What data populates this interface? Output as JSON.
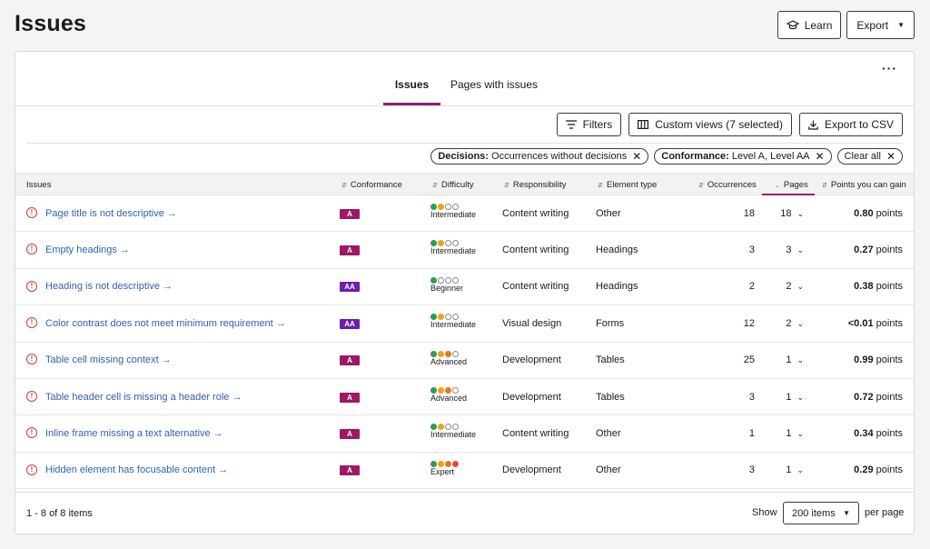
{
  "page_title": "Issues",
  "top_actions": {
    "learn_label": "Learn",
    "export_label": "Export"
  },
  "tabs": [
    {
      "label": "Issues",
      "active": true
    },
    {
      "label": "Pages with issues",
      "active": false
    }
  ],
  "more_label": "···",
  "toolbar": {
    "filters_label": "Filters",
    "custom_views_label": "Custom views (7 selected)",
    "export_csv_label": "Export to CSV"
  },
  "chips": [
    {
      "key": "Decisions:",
      "value": "Occurrences without decisions"
    },
    {
      "key": "Conformance:",
      "value": "Level A, Level AA"
    },
    {
      "key": "",
      "value": "Clear all"
    }
  ],
  "columns": {
    "issues": "Issues",
    "conformance": "Conformance",
    "difficulty": "Difficulty",
    "responsibility": "Responsibility",
    "element_type": "Element type",
    "occurrences": "Occurrences",
    "pages": "Pages",
    "points": "Points you can gain"
  },
  "colors": {
    "green": "#2e9e4f",
    "orange": "#f0a11a",
    "orange_dark": "#e8761a",
    "red": "#e8445a",
    "accent": "#9b1a6f"
  },
  "rows": [
    {
      "issue": "Page title is not descriptive →",
      "conformance": "A",
      "difficulty": "Intermediate",
      "dots": [
        "green",
        "orange",
        "empty",
        "empty"
      ],
      "responsibility": "Content writing",
      "element_type": "Other",
      "occurrences": "18",
      "pages": "18",
      "points": "0.80",
      "points_unit": "points"
    },
    {
      "issue": "Empty headings →",
      "conformance": "A",
      "difficulty": "Intermediate",
      "dots": [
        "green",
        "orange",
        "empty",
        "empty"
      ],
      "responsibility": "Content writing",
      "element_type": "Headings",
      "occurrences": "3",
      "pages": "3",
      "points": "0.27",
      "points_unit": "points"
    },
    {
      "issue": "Heading is not descriptive →",
      "conformance": "AA",
      "difficulty": "Beginner",
      "dots": [
        "green",
        "empty",
        "empty",
        "empty"
      ],
      "responsibility": "Content writing",
      "element_type": "Headings",
      "occurrences": "2",
      "pages": "2",
      "points": "0.38",
      "points_unit": "points"
    },
    {
      "issue": "Color contrast does not meet minimum requirement →",
      "conformance": "AA",
      "difficulty": "Intermediate",
      "dots": [
        "green",
        "orange",
        "empty",
        "empty"
      ],
      "responsibility": "Visual design",
      "element_type": "Forms",
      "occurrences": "12",
      "pages": "2",
      "points": "<0.01",
      "points_unit": "points"
    },
    {
      "issue": "Table cell missing context →",
      "conformance": "A",
      "difficulty": "Advanced",
      "dots": [
        "green",
        "orange",
        "orange_dark",
        "empty"
      ],
      "responsibility": "Development",
      "element_type": "Tables",
      "occurrences": "25",
      "pages": "1",
      "points": "0.99",
      "points_unit": "points"
    },
    {
      "issue": "Table header cell is missing a header role →",
      "conformance": "A",
      "difficulty": "Advanced",
      "dots": [
        "green",
        "orange",
        "orange_dark",
        "empty"
      ],
      "responsibility": "Development",
      "element_type": "Tables",
      "occurrences": "3",
      "pages": "1",
      "points": "0.72",
      "points_unit": "points"
    },
    {
      "issue": "Inline frame missing a text alternative →",
      "conformance": "A",
      "difficulty": "Intermediate",
      "dots": [
        "green",
        "orange",
        "empty",
        "empty"
      ],
      "responsibility": "Content writing",
      "element_type": "Other",
      "occurrences": "1",
      "pages": "1",
      "points": "0.34",
      "points_unit": "points"
    },
    {
      "issue": "Hidden element has focusable content →",
      "conformance": "A",
      "difficulty": "Expert",
      "dots": [
        "green",
        "orange",
        "orange_dark",
        "red"
      ],
      "responsibility": "Development",
      "element_type": "Other",
      "occurrences": "3",
      "pages": "1",
      "points": "0.29",
      "points_unit": "points"
    }
  ],
  "footer": {
    "count": "1 - 8 of 8 items",
    "show_label": "Show",
    "page_size": "200 items",
    "per_page_label": "per page"
  }
}
